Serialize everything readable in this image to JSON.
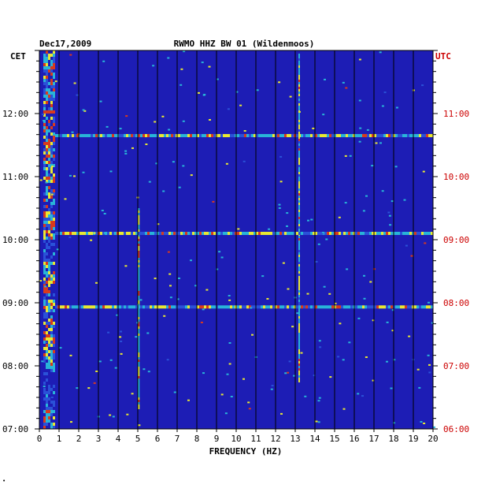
{
  "chart_data": {
    "type": "heatmap",
    "date": "Dec17,2009",
    "title": "RWMO HHZ BW 01 (Wildenmoos)",
    "left_timezone": "CET",
    "right_timezone": "UTC",
    "xlabel": "FREQUENCY (HZ)",
    "xlim": [
      0,
      20
    ],
    "x_ticks": [
      "0",
      "1",
      "2",
      "3",
      "4",
      "5",
      "6",
      "7",
      "8",
      "9",
      "10",
      "11",
      "12",
      "13",
      "14",
      "15",
      "16",
      "17",
      "18",
      "19",
      "20"
    ],
    "time_range_cet": [
      "07:00",
      "13:00"
    ],
    "y_ticks_cet": [
      "07:00",
      "08:00",
      "09:00",
      "10:00",
      "11:00",
      "12:00"
    ],
    "y_ticks_utc": [
      "06:00",
      "07:00",
      "08:00",
      "09:00",
      "10:00",
      "11:00"
    ],
    "background_color": "#1d1db5",
    "colors": {
      "axis": "#000000",
      "utc_label": "#cc0000",
      "background": "#1d1db5",
      "low": "#2a52d8",
      "mid": "#28b4d8",
      "high": "#e8e832",
      "peak": "#d83a1e"
    },
    "grid": "vertical lines at each integer Hz",
    "features": {
      "low_frequency_band_hz": [
        0.2,
        0.8
      ],
      "persistent_line_hz": 13.2,
      "intermittent_line_hz": 5.05,
      "broadband_bursts_cet": [
        "08:56",
        "10:06",
        "11:39"
      ]
    }
  }
}
